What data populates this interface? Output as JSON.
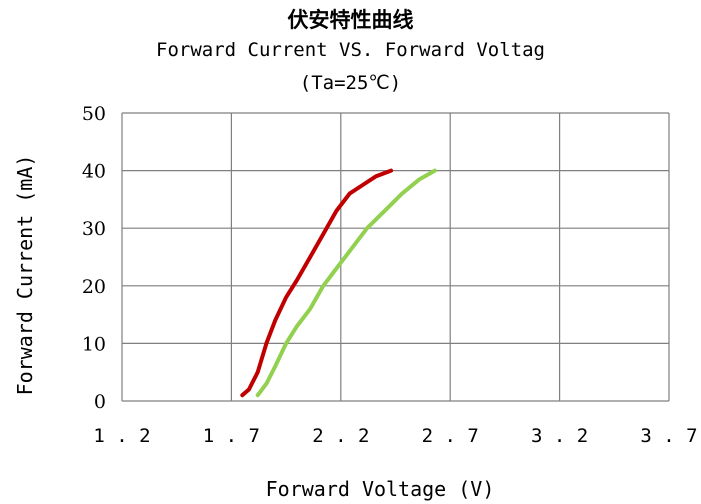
{
  "chart_data": {
    "type": "line",
    "title": "伏安特性曲线",
    "subtitle": "Forward Current VS. Forward Voltag",
    "subtitle2": "(Ta=25℃)",
    "xlabel": "Forward  Voltage (V)",
    "ylabel": "Forward  Current (mA)",
    "xlim": [
      1.2,
      3.7
    ],
    "ylim": [
      0,
      50
    ],
    "xticks": [
      "1.2",
      "1.7",
      "2.2",
      "2.7",
      "3.2",
      "3.7"
    ],
    "yticks": [
      "0",
      "10",
      "20",
      "30",
      "40",
      "50"
    ],
    "grid": true,
    "series": [
      {
        "color": "#c00000",
        "x": [
          1.75,
          1.78,
          1.82,
          1.86,
          1.9,
          1.95,
          2.0,
          2.06,
          2.12,
          2.18,
          2.24,
          2.3,
          2.36,
          2.43
        ],
        "y": [
          1,
          2,
          5,
          10,
          14,
          18,
          21,
          25,
          29,
          33,
          36,
          37.5,
          39,
          40
        ]
      },
      {
        "color": "#92d050",
        "x": [
          1.82,
          1.86,
          1.9,
          1.95,
          2.0,
          2.06,
          2.12,
          2.18,
          2.24,
          2.32,
          2.4,
          2.48,
          2.56,
          2.63
        ],
        "y": [
          1,
          3,
          6,
          10,
          13,
          16,
          20,
          23,
          26,
          30,
          33,
          36,
          38.5,
          40
        ]
      }
    ]
  }
}
